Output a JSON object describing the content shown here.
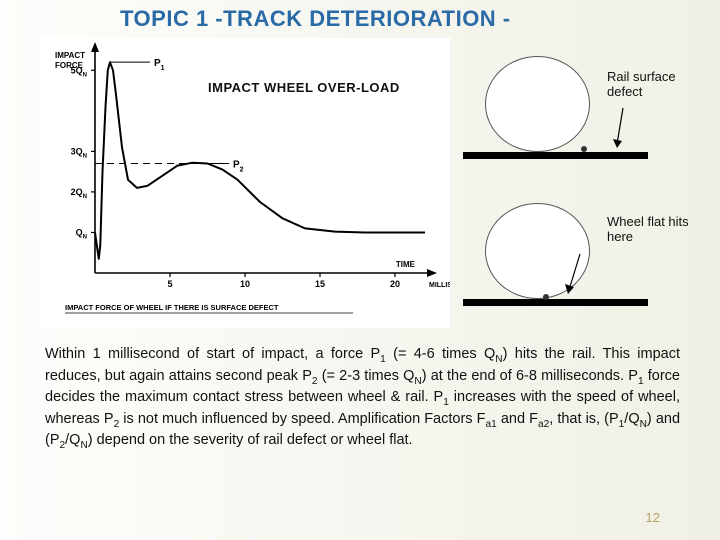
{
  "title_line1": "TOPIC 1 -TRACK DETERIORATION -",
  "chart": {
    "type": "line",
    "overlay_title": "IMPACT WHEEL OVER-LOAD",
    "y_axis_label": "IMPACT FORCE",
    "x_axis_label": "TIME",
    "x_unit_label": "MILLISECONDS",
    "bottom_caption": "IMPACT FORCE OF WHEEL IF THERE IS SURFACE DEFECT",
    "y_ticks": [
      "Q",
      "2Q",
      "3Q",
      "5Q"
    ],
    "y_subscript": "N",
    "x_ticks": [
      5,
      10,
      15,
      20
    ],
    "xlim": [
      0,
      22
    ],
    "ylim": [
      0,
      5.5
    ],
    "p1_label": "P",
    "p1_sub": "1",
    "p2_label": "P",
    "p2_sub": "2",
    "p2_dash_y": 2.7,
    "curve": [
      [
        0.0,
        1.0
      ],
      [
        0.15,
        0.6
      ],
      [
        0.25,
        0.35
      ],
      [
        0.35,
        0.7
      ],
      [
        0.5,
        2.5
      ],
      [
        0.7,
        4.1
      ],
      [
        0.85,
        5.0
      ],
      [
        1.0,
        5.2
      ],
      [
        1.2,
        5.0
      ],
      [
        1.4,
        4.4
      ],
      [
        1.8,
        3.1
      ],
      [
        2.2,
        2.3
      ],
      [
        2.8,
        2.1
      ],
      [
        3.5,
        2.15
      ],
      [
        4.5,
        2.4
      ],
      [
        5.5,
        2.65
      ],
      [
        6.5,
        2.72
      ],
      [
        7.5,
        2.7
      ],
      [
        8.5,
        2.55
      ],
      [
        9.5,
        2.3
      ],
      [
        11.0,
        1.75
      ],
      [
        12.5,
        1.35
      ],
      [
        14.0,
        1.1
      ],
      [
        16.0,
        1.02
      ],
      [
        18.0,
        1.0
      ],
      [
        20.0,
        1.0
      ],
      [
        22.0,
        1.0
      ]
    ],
    "curve_color": "#000000",
    "curve_width": 2,
    "axis_color": "#000000",
    "p1_xy": [
      1.0,
      5.2
    ],
    "p2_xy": [
      6.8,
      2.7
    ]
  },
  "diagrams": {
    "top_label": "Rail surface defect",
    "bottom_label": "Wheel flat hits here",
    "circle_stroke": "#555555",
    "bar_color": "#000000",
    "dot_color": "#333333"
  },
  "body_html": "Within 1 millisecond of start of impact, a force P<sub>1</sub> (= 4-6 times Q<sub>N</sub>) hits the rail.  This impact reduces, but again attains second peak P<sub>2</sub> (= 2-3 times Q<sub>N</sub>) at the end of 6-8 milliseconds. P<sub>1</sub> force decides the maximum contact stress between wheel &amp; rail.  P<sub>1</sub> increases with the speed of wheel, whereas P<sub>2</sub> is not much influenced by speed. Amplification Factors F<sub>a1</sub> and F<sub>a2</sub>, that is, (P<sub>1</sub>/Q<sub>N</sub>) and (P<sub>2</sub>/Q<sub>N</sub>) depend on the severity of rail defect or wheel flat.",
  "slide_number": "12"
}
